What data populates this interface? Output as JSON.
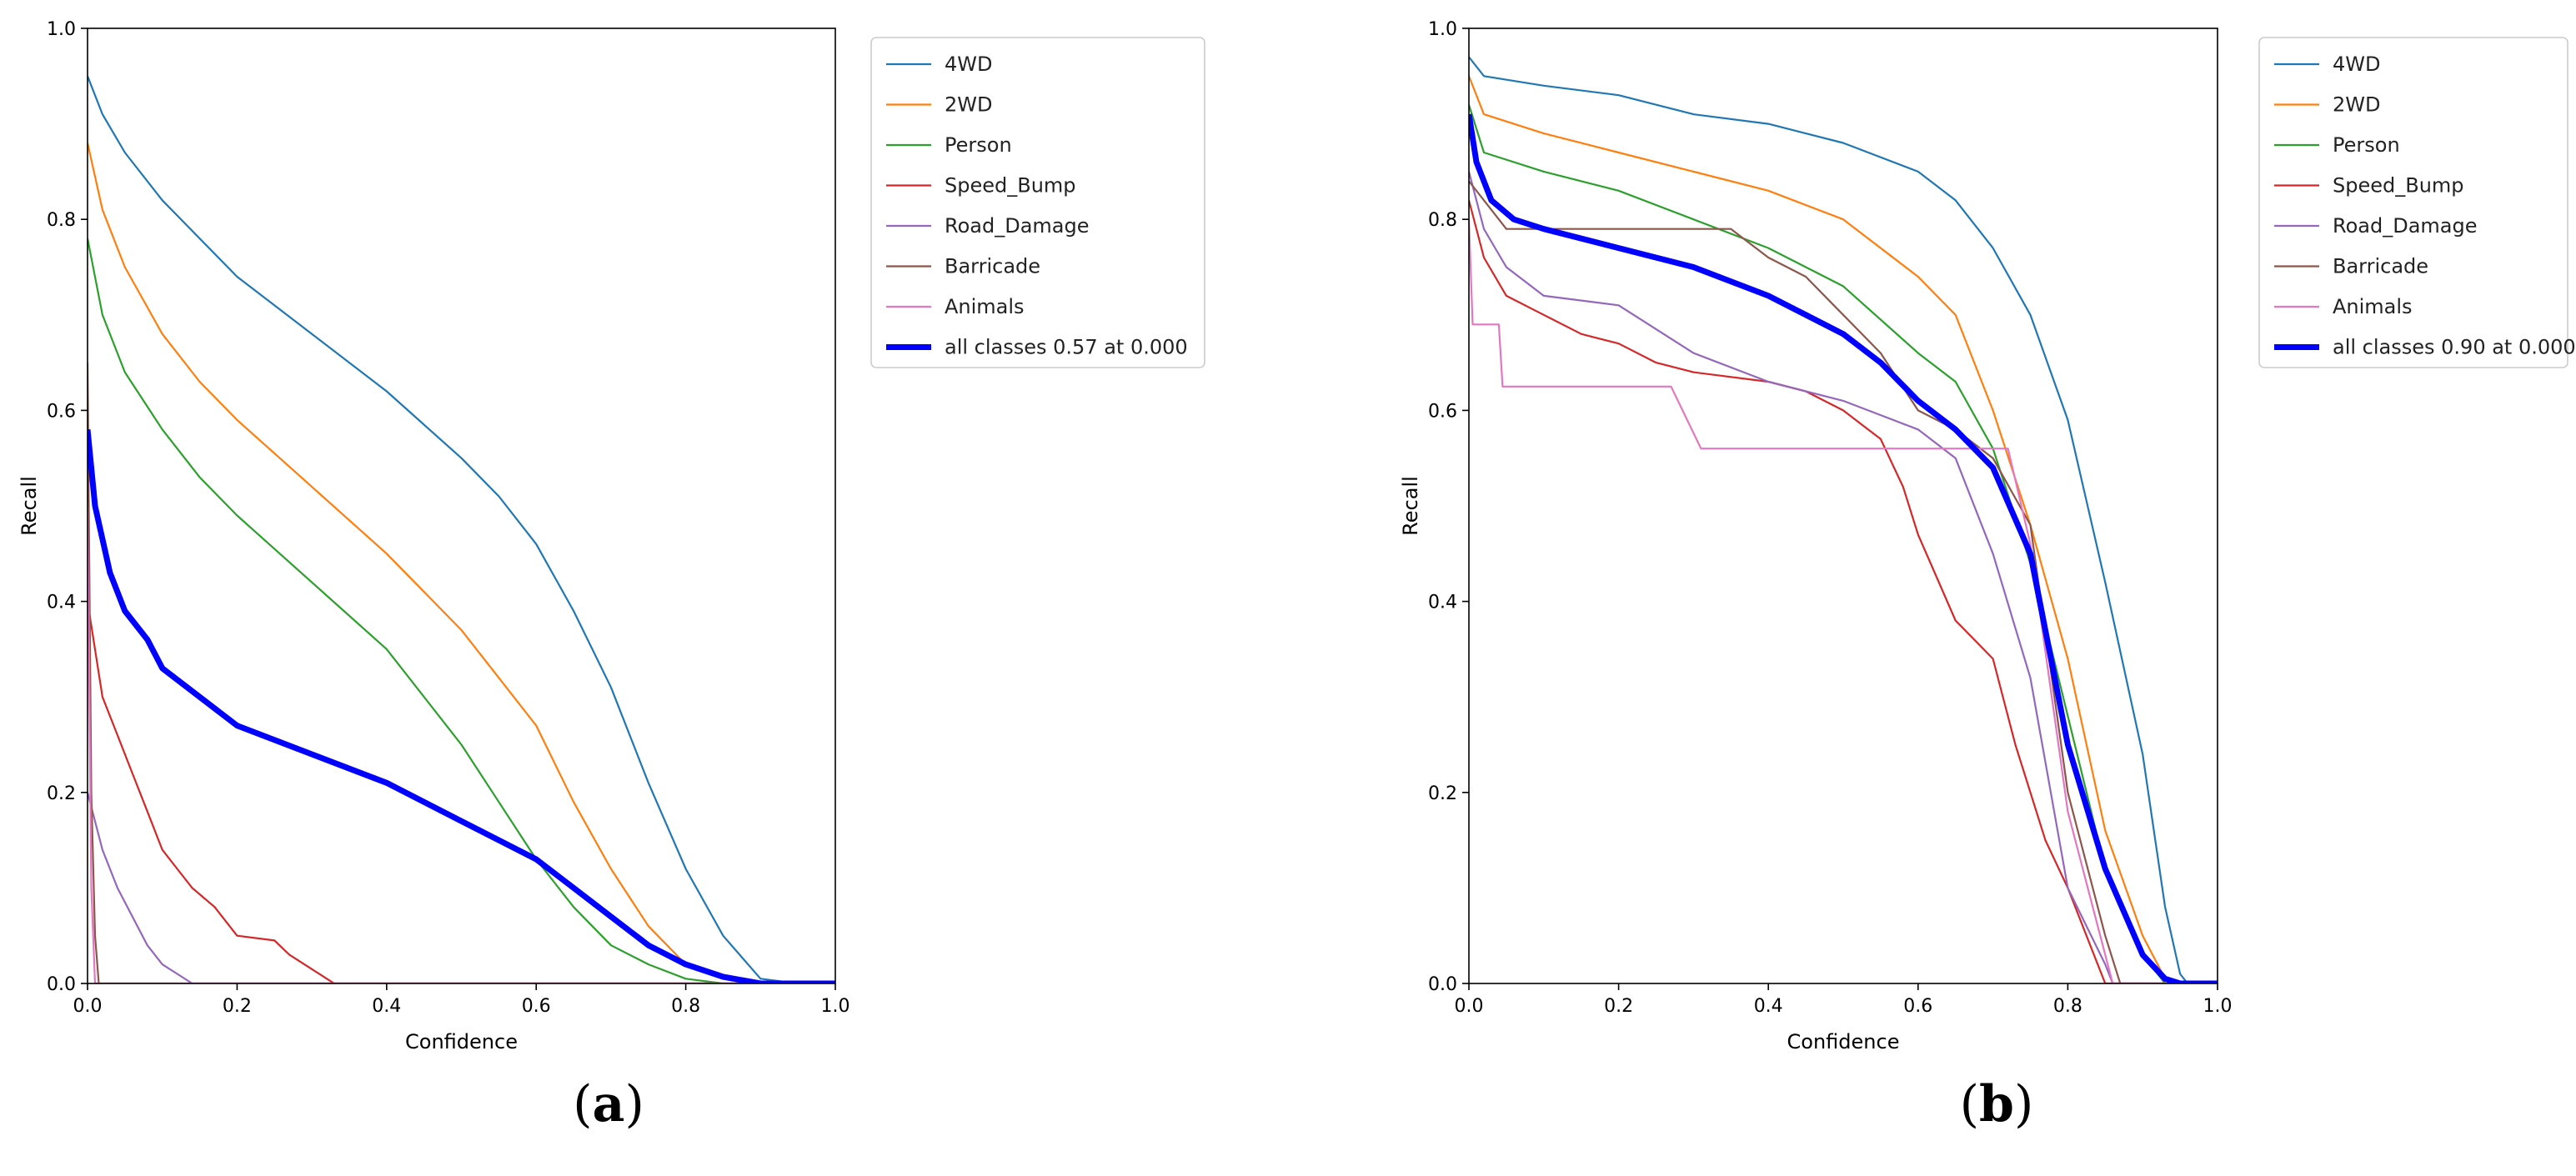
{
  "chart_data": [
    {
      "type": "line",
      "panel_label": "a",
      "xlabel": "Confidence",
      "ylabel": "Recall",
      "xlim": [
        0,
        1
      ],
      "ylim": [
        0,
        1
      ],
      "xticks": [
        "0.0",
        "0.2",
        "0.4",
        "0.6",
        "0.8",
        "1.0"
      ],
      "yticks": [
        "0.0",
        "0.2",
        "0.4",
        "0.6",
        "0.8",
        "1.0"
      ],
      "legend_position": "outside-right-top",
      "series": [
        {
          "name": "4WD",
          "color": "#1f77b4",
          "points": [
            [
              0,
              0.95
            ],
            [
              0.02,
              0.91
            ],
            [
              0.05,
              0.87
            ],
            [
              0.1,
              0.82
            ],
            [
              0.15,
              0.78
            ],
            [
              0.2,
              0.74
            ],
            [
              0.3,
              0.68
            ],
            [
              0.4,
              0.62
            ],
            [
              0.5,
              0.55
            ],
            [
              0.55,
              0.51
            ],
            [
              0.6,
              0.46
            ],
            [
              0.65,
              0.39
            ],
            [
              0.7,
              0.31
            ],
            [
              0.75,
              0.21
            ],
            [
              0.8,
              0.12
            ],
            [
              0.85,
              0.05
            ],
            [
              0.9,
              0.005
            ],
            [
              0.95,
              0
            ],
            [
              1.0,
              0
            ]
          ]
        },
        {
          "name": "2WD",
          "color": "#ff7f0e",
          "points": [
            [
              0,
              0.88
            ],
            [
              0.02,
              0.81
            ],
            [
              0.05,
              0.75
            ],
            [
              0.1,
              0.68
            ],
            [
              0.15,
              0.63
            ],
            [
              0.2,
              0.59
            ],
            [
              0.3,
              0.52
            ],
            [
              0.4,
              0.45
            ],
            [
              0.5,
              0.37
            ],
            [
              0.55,
              0.32
            ],
            [
              0.6,
              0.27
            ],
            [
              0.65,
              0.19
            ],
            [
              0.7,
              0.12
            ],
            [
              0.75,
              0.06
            ],
            [
              0.8,
              0.02
            ],
            [
              0.85,
              0.005
            ],
            [
              0.9,
              0
            ],
            [
              1.0,
              0
            ]
          ]
        },
        {
          "name": "Person",
          "color": "#2ca02c",
          "points": [
            [
              0,
              0.78
            ],
            [
              0.02,
              0.7
            ],
            [
              0.05,
              0.64
            ],
            [
              0.1,
              0.58
            ],
            [
              0.15,
              0.53
            ],
            [
              0.2,
              0.49
            ],
            [
              0.3,
              0.42
            ],
            [
              0.4,
              0.35
            ],
            [
              0.5,
              0.25
            ],
            [
              0.55,
              0.19
            ],
            [
              0.6,
              0.13
            ],
            [
              0.65,
              0.08
            ],
            [
              0.7,
              0.04
            ],
            [
              0.75,
              0.02
            ],
            [
              0.8,
              0.005
            ],
            [
              0.85,
              0
            ],
            [
              1.0,
              0
            ]
          ]
        },
        {
          "name": "Speed_Bump",
          "color": "#d62728",
          "points": [
            [
              0,
              0.4
            ],
            [
              0.02,
              0.3
            ],
            [
              0.04,
              0.26
            ],
            [
              0.06,
              0.22
            ],
            [
              0.08,
              0.18
            ],
            [
              0.1,
              0.14
            ],
            [
              0.12,
              0.12
            ],
            [
              0.14,
              0.1
            ],
            [
              0.17,
              0.08
            ],
            [
              0.2,
              0.05
            ],
            [
              0.25,
              0.045
            ],
            [
              0.27,
              0.03
            ],
            [
              0.3,
              0.015
            ],
            [
              0.32,
              0.005
            ],
            [
              0.33,
              0
            ],
            [
              1.0,
              0
            ]
          ]
        },
        {
          "name": "Road_Damage",
          "color": "#9467bd",
          "points": [
            [
              0,
              0.2
            ],
            [
              0.02,
              0.14
            ],
            [
              0.04,
              0.1
            ],
            [
              0.06,
              0.07
            ],
            [
              0.08,
              0.04
            ],
            [
              0.1,
              0.02
            ],
            [
              0.12,
              0.01
            ],
            [
              0.14,
              0
            ],
            [
              1.0,
              0
            ]
          ]
        },
        {
          "name": "Barricade",
          "color": "#8c564b",
          "points": [
            [
              0,
              0.65
            ],
            [
              0.005,
              0.2
            ],
            [
              0.01,
              0.05
            ],
            [
              0.015,
              0
            ],
            [
              1.0,
              0
            ]
          ]
        },
        {
          "name": "Animals",
          "color": "#e377c2",
          "points": [
            [
              0,
              0.5
            ],
            [
              0.005,
              0.1
            ],
            [
              0.01,
              0
            ],
            [
              1.0,
              0
            ]
          ]
        },
        {
          "name": "all classes 0.57 at 0.000",
          "color": "#0000ff",
          "bold": true,
          "points": [
            [
              0,
              0.58
            ],
            [
              0.01,
              0.5
            ],
            [
              0.03,
              0.43
            ],
            [
              0.05,
              0.39
            ],
            [
              0.08,
              0.36
            ],
            [
              0.1,
              0.33
            ],
            [
              0.15,
              0.3
            ],
            [
              0.2,
              0.27
            ],
            [
              0.3,
              0.24
            ],
            [
              0.4,
              0.21
            ],
            [
              0.5,
              0.17
            ],
            [
              0.55,
              0.15
            ],
            [
              0.6,
              0.13
            ],
            [
              0.65,
              0.1
            ],
            [
              0.7,
              0.07
            ],
            [
              0.75,
              0.04
            ],
            [
              0.8,
              0.02
            ],
            [
              0.85,
              0.007
            ],
            [
              0.9,
              0
            ],
            [
              1.0,
              0
            ]
          ]
        }
      ]
    },
    {
      "type": "line",
      "panel_label": "b",
      "xlabel": "Confidence",
      "ylabel": "Recall",
      "xlim": [
        0,
        1
      ],
      "ylim": [
        0,
        1
      ],
      "xticks": [
        "0.0",
        "0.2",
        "0.4",
        "0.6",
        "0.8",
        "1.0"
      ],
      "yticks": [
        "0.0",
        "0.2",
        "0.4",
        "0.6",
        "0.8",
        "1.0"
      ],
      "legend_position": "outside-right-top",
      "series": [
        {
          "name": "4WD",
          "color": "#1f77b4",
          "points": [
            [
              0,
              0.97
            ],
            [
              0.02,
              0.95
            ],
            [
              0.1,
              0.94
            ],
            [
              0.2,
              0.93
            ],
            [
              0.3,
              0.91
            ],
            [
              0.4,
              0.9
            ],
            [
              0.5,
              0.88
            ],
            [
              0.6,
              0.85
            ],
            [
              0.65,
              0.82
            ],
            [
              0.7,
              0.77
            ],
            [
              0.75,
              0.7
            ],
            [
              0.8,
              0.59
            ],
            [
              0.85,
              0.42
            ],
            [
              0.9,
              0.24
            ],
            [
              0.93,
              0.08
            ],
            [
              0.95,
              0.01
            ],
            [
              0.96,
              0
            ],
            [
              1.0,
              0
            ]
          ]
        },
        {
          "name": "2WD",
          "color": "#ff7f0e",
          "points": [
            [
              0,
              0.95
            ],
            [
              0.02,
              0.91
            ],
            [
              0.1,
              0.89
            ],
            [
              0.2,
              0.87
            ],
            [
              0.3,
              0.85
            ],
            [
              0.4,
              0.83
            ],
            [
              0.5,
              0.8
            ],
            [
              0.6,
              0.74
            ],
            [
              0.65,
              0.7
            ],
            [
              0.7,
              0.6
            ],
            [
              0.75,
              0.48
            ],
            [
              0.8,
              0.34
            ],
            [
              0.85,
              0.16
            ],
            [
              0.9,
              0.05
            ],
            [
              0.93,
              0.005
            ],
            [
              0.95,
              0
            ],
            [
              1.0,
              0
            ]
          ]
        },
        {
          "name": "Person",
          "color": "#2ca02c",
          "points": [
            [
              0,
              0.92
            ],
            [
              0.02,
              0.87
            ],
            [
              0.1,
              0.85
            ],
            [
              0.2,
              0.83
            ],
            [
              0.3,
              0.8
            ],
            [
              0.4,
              0.77
            ],
            [
              0.5,
              0.73
            ],
            [
              0.6,
              0.66
            ],
            [
              0.65,
              0.63
            ],
            [
              0.7,
              0.56
            ],
            [
              0.75,
              0.44
            ],
            [
              0.8,
              0.28
            ],
            [
              0.85,
              0.12
            ],
            [
              0.9,
              0.03
            ],
            [
              0.93,
              0
            ],
            [
              1.0,
              0
            ]
          ]
        },
        {
          "name": "Speed_Bump",
          "color": "#d62728",
          "points": [
            [
              0,
              0.82
            ],
            [
              0.02,
              0.76
            ],
            [
              0.05,
              0.72
            ],
            [
              0.1,
              0.7
            ],
            [
              0.15,
              0.68
            ],
            [
              0.2,
              0.67
            ],
            [
              0.25,
              0.65
            ],
            [
              0.3,
              0.64
            ],
            [
              0.4,
              0.63
            ],
            [
              0.45,
              0.62
            ],
            [
              0.5,
              0.6
            ],
            [
              0.55,
              0.57
            ],
            [
              0.58,
              0.52
            ],
            [
              0.6,
              0.47
            ],
            [
              0.65,
              0.38
            ],
            [
              0.7,
              0.34
            ],
            [
              0.73,
              0.25
            ],
            [
              0.77,
              0.15
            ],
            [
              0.8,
              0.1
            ],
            [
              0.83,
              0.04
            ],
            [
              0.85,
              0
            ],
            [
              1.0,
              0
            ]
          ]
        },
        {
          "name": "Road_Damage",
          "color": "#9467bd",
          "points": [
            [
              0,
              0.85
            ],
            [
              0.02,
              0.79
            ],
            [
              0.05,
              0.75
            ],
            [
              0.1,
              0.72
            ],
            [
              0.2,
              0.71
            ],
            [
              0.3,
              0.66
            ],
            [
              0.4,
              0.63
            ],
            [
              0.5,
              0.61
            ],
            [
              0.6,
              0.58
            ],
            [
              0.65,
              0.55
            ],
            [
              0.7,
              0.45
            ],
            [
              0.75,
              0.32
            ],
            [
              0.8,
              0.1
            ],
            [
              0.85,
              0.02
            ],
            [
              0.86,
              0
            ],
            [
              1.0,
              0
            ]
          ]
        },
        {
          "name": "Barricade",
          "color": "#8c564b",
          "points": [
            [
              0,
              0.84
            ],
            [
              0.02,
              0.82
            ],
            [
              0.05,
              0.79
            ],
            [
              0.1,
              0.79
            ],
            [
              0.2,
              0.79
            ],
            [
              0.3,
              0.79
            ],
            [
              0.35,
              0.79
            ],
            [
              0.4,
              0.76
            ],
            [
              0.45,
              0.74
            ],
            [
              0.5,
              0.7
            ],
            [
              0.55,
              0.66
            ],
            [
              0.6,
              0.6
            ],
            [
              0.65,
              0.58
            ],
            [
              0.7,
              0.55
            ],
            [
              0.75,
              0.48
            ],
            [
              0.8,
              0.2
            ],
            [
              0.85,
              0.05
            ],
            [
              0.87,
              0
            ],
            [
              1.0,
              0
            ]
          ]
        },
        {
          "name": "Animals",
          "color": "#e377c2",
          "points": [
            [
              0,
              0.8
            ],
            [
              0.005,
              0.69
            ],
            [
              0.04,
              0.69
            ],
            [
              0.045,
              0.625
            ],
            [
              0.27,
              0.625
            ],
            [
              0.31,
              0.56
            ],
            [
              0.69,
              0.56
            ],
            [
              0.72,
              0.56
            ],
            [
              0.75,
              0.46
            ],
            [
              0.8,
              0.18
            ],
            [
              0.84,
              0.06
            ],
            [
              0.86,
              0
            ],
            [
              1.0,
              0
            ]
          ]
        },
        {
          "name": "all classes 0.90 at 0.000",
          "color": "#0000ff",
          "bold": true,
          "points": [
            [
              0,
              0.91
            ],
            [
              0.01,
              0.86
            ],
            [
              0.03,
              0.82
            ],
            [
              0.06,
              0.8
            ],
            [
              0.1,
              0.79
            ],
            [
              0.2,
              0.77
            ],
            [
              0.3,
              0.75
            ],
            [
              0.4,
              0.72
            ],
            [
              0.45,
              0.7
            ],
            [
              0.5,
              0.68
            ],
            [
              0.55,
              0.65
            ],
            [
              0.6,
              0.61
            ],
            [
              0.65,
              0.58
            ],
            [
              0.7,
              0.54
            ],
            [
              0.75,
              0.45
            ],
            [
              0.78,
              0.33
            ],
            [
              0.8,
              0.25
            ],
            [
              0.85,
              0.12
            ],
            [
              0.9,
              0.03
            ],
            [
              0.93,
              0.005
            ],
            [
              0.95,
              0
            ],
            [
              1.0,
              0
            ]
          ]
        }
      ]
    }
  ]
}
